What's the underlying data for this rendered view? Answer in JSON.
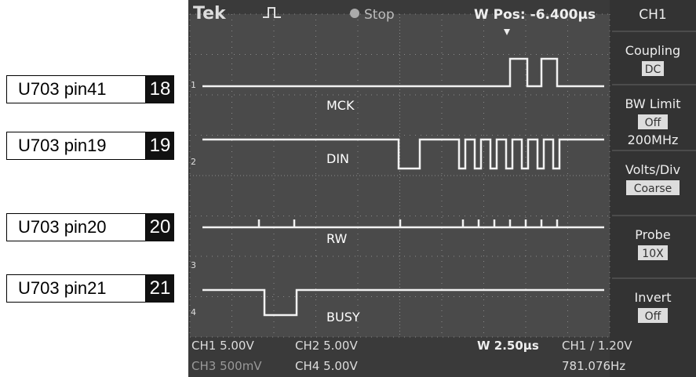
{
  "labels": [
    {
      "name": "U703 pin41",
      "number": "18"
    },
    {
      "name": "U703 pin19",
      "number": "19"
    },
    {
      "name": "U703 pin20",
      "number": "20"
    },
    {
      "name": "U703 pin21",
      "number": "21"
    }
  ],
  "scope": {
    "brand": "Tek",
    "status": "Stop",
    "position": "W Pos: -6.400µs",
    "channel": "CH1",
    "menu": [
      {
        "title": "Coupling",
        "value": "DC"
      },
      {
        "title": "BW Limit",
        "value": "Off",
        "extra": "200MHz"
      },
      {
        "title": "Volts/Div",
        "value": "Coarse"
      },
      {
        "title": "Probe",
        "value": "10X"
      },
      {
        "title": "Invert",
        "value": "Off"
      }
    ],
    "traces": [
      "MCK",
      "DIN",
      "RW",
      "BUSY"
    ],
    "markers": [
      "1",
      "2",
      "3",
      "4"
    ],
    "readout": {
      "ch1": "CH1  5.00V",
      "ch2": "CH2  5.00V",
      "ch3": "CH3  500mV",
      "ch4": "CH4  5.00V",
      "timebase": "W 2.50µs",
      "trigger": "CH1 ∕ 1.20V",
      "frequency": "781.076Hz"
    }
  }
}
